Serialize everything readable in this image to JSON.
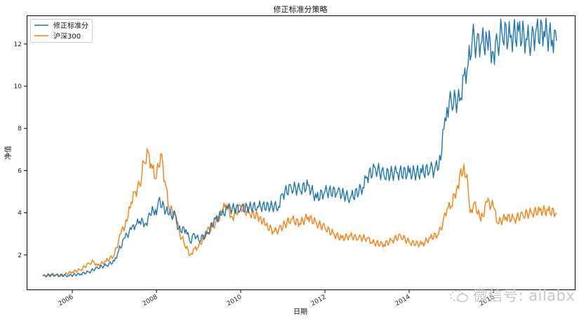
{
  "chart_data": {
    "type": "line",
    "title": "修正标准分策略",
    "xlabel": "日期",
    "ylabel": "净值",
    "x_tick_labels": [
      "2006",
      "2008",
      "2010",
      "2012",
      "2014",
      "2016"
    ],
    "x_ticks": [
      2006,
      2008,
      2010,
      2012,
      2014,
      2016
    ],
    "y_ticks": [
      2,
      4,
      6,
      8,
      10,
      12
    ],
    "y_tick_labels": [
      "2",
      "4",
      "6",
      "8",
      "10",
      "12"
    ],
    "xlim": [
      2004.9,
      2017.9
    ],
    "ylim": [
      0.35,
      13.3
    ],
    "grid": false,
    "legend_position": "upper left",
    "series": [
      {
        "name": "修正标准分",
        "color": "#1f77b4",
        "x": [
          2005.3,
          2005.6,
          2005.9,
          2006.2,
          2006.4,
          2006.6,
          2006.8,
          2007.0,
          2007.1,
          2007.25,
          2007.4,
          2007.5,
          2007.6,
          2007.75,
          2007.85,
          2007.9,
          2008.0,
          2008.05,
          2008.3,
          2008.45,
          2008.5,
          2008.7,
          2008.8,
          2008.9,
          2009.0,
          2009.2,
          2009.4,
          2009.55,
          2009.7,
          2010.0,
          2010.4,
          2010.9,
          2011.0,
          2011.2,
          2011.4,
          2011.6,
          2011.8,
          2012.0,
          2012.3,
          2012.6,
          2012.9,
          2013.0,
          2013.2,
          2013.4,
          2013.7,
          2014.0,
          2014.3,
          2014.5,
          2014.6,
          2014.75,
          2014.85,
          2014.9,
          2015.0,
          2015.2,
          2015.3,
          2015.4,
          2015.5,
          2015.6,
          2015.7,
          2015.85,
          2016.0,
          2016.1,
          2016.2,
          2016.4,
          2016.6,
          2016.8,
          2016.9,
          2017.0,
          2017.2,
          2017.4,
          2017.5
        ],
        "values": [
          1.0,
          1.05,
          1.02,
          1.1,
          1.2,
          1.4,
          1.5,
          1.7,
          2.2,
          2.8,
          3.2,
          3.4,
          3.6,
          3.5,
          3.9,
          4.3,
          3.9,
          4.6,
          3.9,
          3.9,
          3.2,
          3.2,
          2.6,
          3.0,
          2.7,
          3.0,
          3.7,
          3.9,
          4.2,
          4.2,
          4.3,
          4.3,
          4.9,
          5.2,
          5.1,
          5.3,
          4.7,
          5.0,
          5.0,
          4.7,
          5.2,
          5.7,
          6.1,
          5.8,
          5.9,
          5.9,
          5.9,
          6.1,
          6.0,
          6.5,
          8.5,
          9.0,
          9.3,
          9.3,
          10.5,
          11.0,
          12.3,
          12.0,
          12.0,
          12.2,
          11.6,
          12.0,
          12.6,
          12.3,
          12.6,
          12.2,
          12.1,
          12.5,
          12.6,
          12.2,
          12.15
        ]
      },
      {
        "name": "沪深300",
        "color": "#ff7f0e",
        "x": [
          2005.3,
          2005.5,
          2005.7,
          2006.0,
          2006.2,
          2006.4,
          2006.5,
          2006.6,
          2006.8,
          2007.0,
          2007.15,
          2007.3,
          2007.4,
          2007.5,
          2007.6,
          2007.7,
          2007.8,
          2007.9,
          2008.0,
          2008.1,
          2008.2,
          2008.3,
          2008.45,
          2008.55,
          2008.65,
          2008.8,
          2008.9,
          2009.0,
          2009.2,
          2009.4,
          2009.55,
          2009.65,
          2009.8,
          2010.0,
          2010.2,
          2010.45,
          2010.6,
          2010.8,
          2010.9,
          2011.2,
          2011.4,
          2011.6,
          2011.8,
          2012.0,
          2012.2,
          2012.4,
          2012.6,
          2012.8,
          2013.0,
          2013.1,
          2013.4,
          2013.6,
          2013.8,
          2014.0,
          2014.3,
          2014.5,
          2014.7,
          2014.8,
          2014.9,
          2015.0,
          2015.15,
          2015.3,
          2015.4,
          2015.45,
          2015.55,
          2015.7,
          2015.85,
          2016.0,
          2016.1,
          2016.3,
          2016.5,
          2016.7,
          2016.9,
          2017.1,
          2017.3,
          2017.5
        ],
        "values": [
          1.0,
          1.1,
          1.0,
          1.2,
          1.3,
          1.6,
          1.7,
          1.5,
          1.7,
          2.0,
          3.0,
          3.6,
          4.5,
          5.0,
          5.3,
          6.4,
          6.9,
          6.1,
          5.7,
          6.8,
          5.5,
          4.2,
          3.9,
          3.0,
          2.6,
          2.0,
          2.3,
          2.4,
          3.1,
          3.5,
          4.0,
          4.4,
          3.8,
          4.3,
          4.0,
          3.8,
          3.4,
          3.1,
          3.2,
          3.7,
          3.5,
          3.8,
          3.5,
          3.3,
          3.0,
          2.8,
          2.9,
          2.8,
          2.8,
          2.6,
          2.5,
          2.7,
          2.9,
          2.6,
          2.5,
          2.8,
          3.0,
          3.5,
          4.2,
          4.3,
          5.3,
          6.3,
          5.2,
          4.0,
          4.5,
          3.6,
          4.5,
          4.3,
          3.5,
          3.8,
          3.7,
          3.9,
          4.0,
          4.1,
          4.1,
          4.0
        ]
      }
    ]
  },
  "watermark": {
    "text": "微信号: ailabx"
  }
}
